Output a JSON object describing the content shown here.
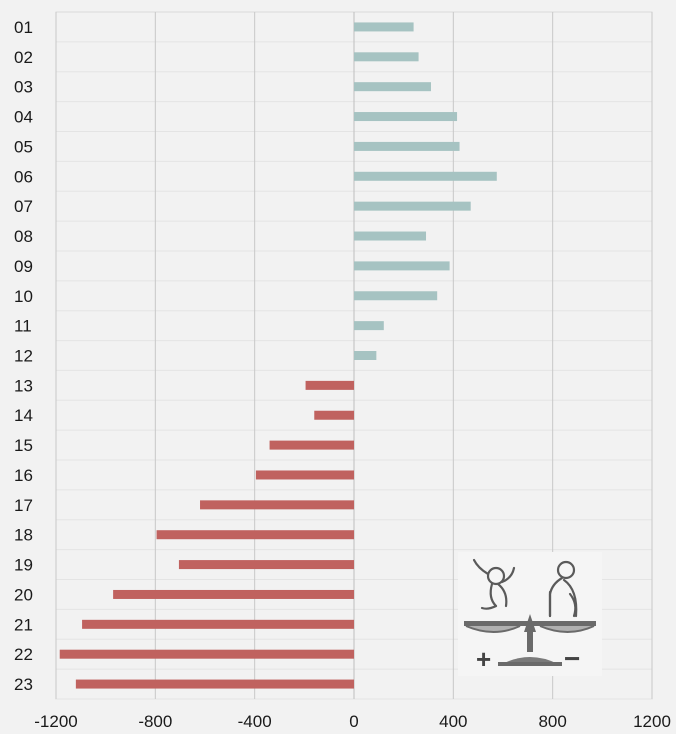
{
  "chart_data": {
    "type": "bar",
    "orientation": "horizontal",
    "categories": [
      "01",
      "02",
      "03",
      "04",
      "05",
      "06",
      "07",
      "08",
      "09",
      "10",
      "11",
      "12",
      "13",
      "14",
      "15",
      "16",
      "17",
      "18",
      "19",
      "20",
      "21",
      "22",
      "23"
    ],
    "values": [
      240,
      260,
      310,
      415,
      425,
      575,
      470,
      290,
      385,
      335,
      120,
      90,
      -195,
      -160,
      -340,
      -395,
      -620,
      -795,
      -705,
      -970,
      -1095,
      -1185,
      -1120
    ],
    "colors": {
      "positive": "#a6c3c2",
      "negative": "#c0625f"
    },
    "xlim": [
      -1200,
      1200
    ],
    "xticks": [
      "-1200",
      "-800",
      "-400",
      "0",
      "400",
      "800",
      "1200"
    ],
    "xtick_values": [
      -1200,
      -800,
      -400,
      0,
      400,
      800,
      1200
    ],
    "grid": "vertical major and minor lines",
    "legend": "none",
    "inset_icon": "population-balance-scale-icon",
    "inset_symbols": {
      "plus": "+",
      "minus": "−"
    }
  }
}
